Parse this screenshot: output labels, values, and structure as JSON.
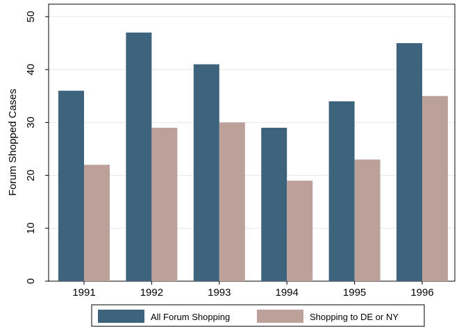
{
  "chart_data": {
    "type": "bar",
    "ylabel": "Forum Shopped Cases",
    "xlabel": "",
    "title": "",
    "categories": [
      "1991",
      "1992",
      "1993",
      "1994",
      "1995",
      "1996"
    ],
    "ylim": [
      0,
      50
    ],
    "yticks": [
      0,
      10,
      20,
      30,
      40,
      50
    ],
    "grid": true,
    "legend_position": "bottom",
    "series": [
      {
        "name": "All Forum Shopping",
        "values": [
          36,
          47,
          41,
          29,
          34,
          45
        ],
        "color": "#3e647d"
      },
      {
        "name": "Shopping to DE or NY",
        "values": [
          22,
          29,
          30,
          19,
          23,
          35
        ],
        "color": "#bca19b"
      }
    ]
  }
}
